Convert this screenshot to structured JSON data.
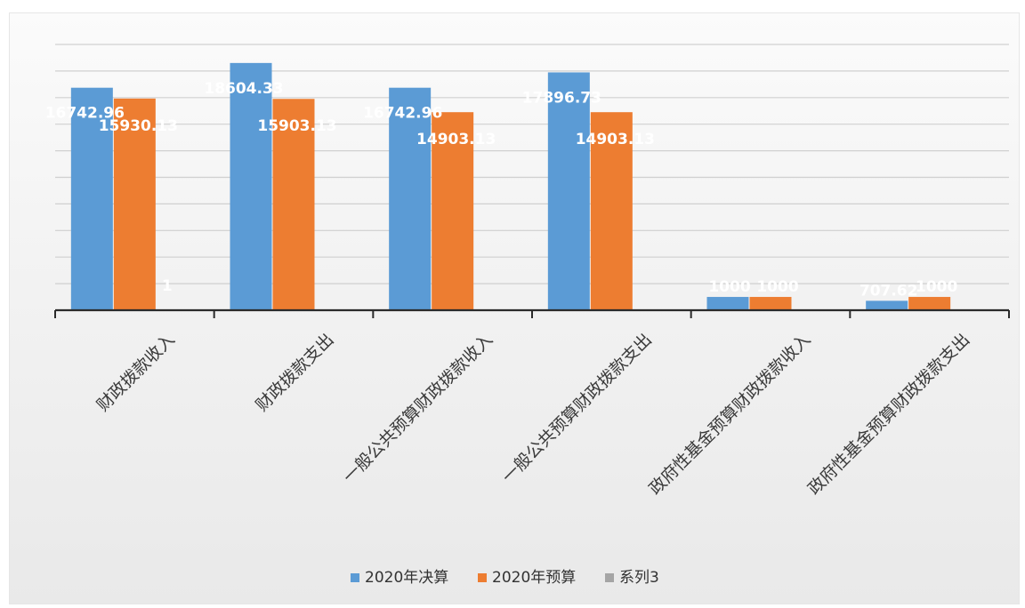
{
  "chart_data": {
    "type": "bar",
    "categories": [
      "财政拨款收入",
      "财政拨款支出",
      "一般公共预算财政拨款收入",
      "一般公共预算财政拨款支出",
      "政府性基金预算财政拨款收入",
      "政府性基金预算财政拨款支出"
    ],
    "series": [
      {
        "name": "2020年决算",
        "color": "#5b9bd5",
        "values": [
          16742.96,
          18604.33,
          16742.96,
          17896.73,
          1000,
          707.62
        ],
        "labels": [
          "16742.96",
          "18604.33",
          "16742.96",
          "17896.73",
          "1000",
          "707.62"
        ]
      },
      {
        "name": "2020年预算",
        "color": "#ed7d31",
        "values": [
          15930.13,
          15903.13,
          14903.13,
          14903.13,
          1000,
          1000
        ],
        "labels": [
          "15930.13",
          "15903.13",
          "14903.13",
          "14903.13",
          "1000",
          "1000"
        ]
      },
      {
        "name": "系列3",
        "color": "#a5a5a5",
        "values": [
          1,
          null,
          null,
          null,
          null,
          null
        ],
        "labels": [
          "1",
          "",
          "",
          "",
          "",
          ""
        ]
      }
    ],
    "ylim": [
      0,
      20000
    ],
    "grid": true,
    "legend_position": "bottom"
  }
}
